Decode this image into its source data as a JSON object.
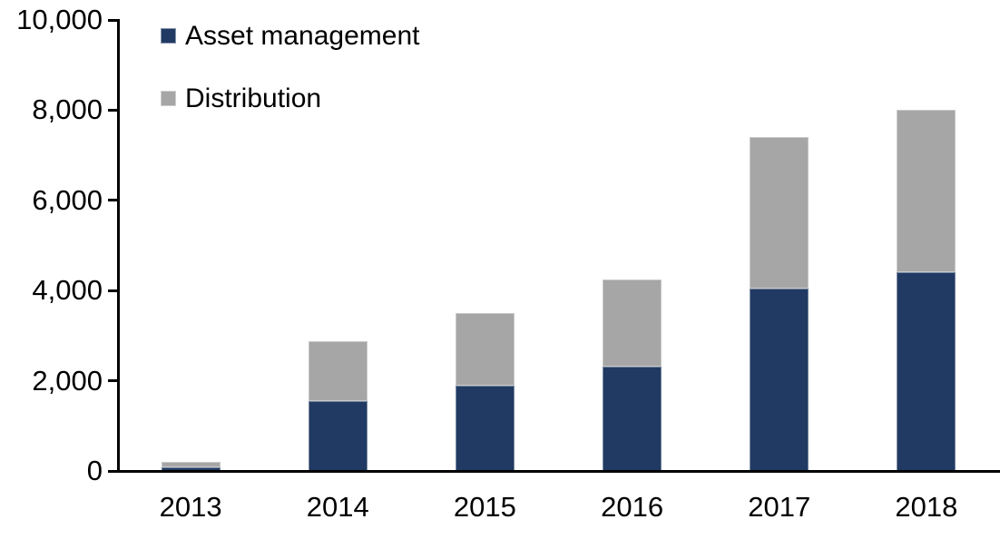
{
  "chart_data": {
    "type": "bar",
    "stacked": true,
    "title": "",
    "xlabel": "",
    "ylabel": "",
    "categories": [
      "2013",
      "2014",
      "2015",
      "2016",
      "2017",
      "2018"
    ],
    "series": [
      {
        "name": "Asset management",
        "color": "#213A63",
        "values": [
          90,
          1550,
          1900,
          2310,
          4050,
          4400
        ]
      },
      {
        "name": "Distribution",
        "color": "#A6A6A6",
        "values": [
          110,
          1320,
          1600,
          1940,
          3350,
          3600
        ]
      }
    ],
    "totals": [
      200,
      2870,
      3500,
      4250,
      7400,
      8000
    ],
    "ylim": [
      0,
      10000
    ],
    "ytick_labels": [
      "0",
      "2,000",
      "4,000",
      "6,000",
      "8,000",
      "10,000"
    ],
    "grid": false,
    "legend_position": "top-left"
  },
  "colors": {
    "axis": "#000000",
    "background": "#FFFFFF",
    "asset_management": "#213A63",
    "distribution": "#A6A6A6"
  }
}
